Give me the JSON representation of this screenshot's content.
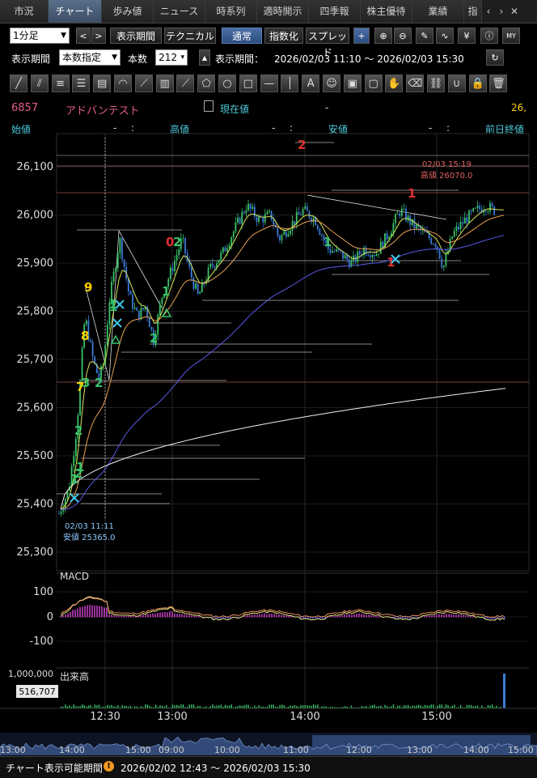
{
  "tabs": [
    {
      "label": "市況",
      "w": 60
    },
    {
      "label": "チャート",
      "w": 66,
      "active": true
    },
    {
      "label": "歩み値",
      "w": 64
    },
    {
      "label": "ニュース",
      "w": 64
    },
    {
      "label": "時系列",
      "w": 64
    },
    {
      "label": "適時開示",
      "w": 64
    },
    {
      "label": "四季報",
      "w": 64
    },
    {
      "label": "株主優待",
      "w": 64
    },
    {
      "label": "業績",
      "w": 64
    },
    {
      "label": "指",
      "w": 22
    }
  ],
  "toolbar": {
    "interval": "1分足",
    "period_button": "表示期間",
    "technical_button": "テクニカル",
    "normal_button": "通常",
    "index_button": "指数化",
    "spread_button": "スプレッド"
  },
  "period_row": {
    "label": "表示期間",
    "mode": "本数指定",
    "count_label": "本数",
    "count_value": "212",
    "range_label": "表示期間：",
    "range_value": "2026/02/03 11:10 〜 2026/02/03 15:30"
  },
  "quote": {
    "code": "6857",
    "name": "アドバンテスト",
    "current_label": "現在値",
    "current_value": "-",
    "current_right": "26,",
    "open_label": "始値",
    "open_value": "-",
    "high_label": "高値",
    "high_value": "-",
    "low_label": "安値",
    "low_value": "-",
    "prev_close_label": "前日終値",
    "sep": ":"
  },
  "chart_data": {
    "type": "candlestick",
    "price_axis": {
      "ticks": [
        "26,100",
        "26,000",
        "25,900",
        "25,800",
        "25,700",
        "25,600",
        "25,500",
        "25,400",
        "25,300"
      ],
      "ylim": [
        25290,
        26160
      ]
    },
    "x_ticks": [
      "12:30",
      "13:00",
      "14:00",
      "15:00"
    ],
    "annotations": {
      "high": {
        "time": "02/03 15:19",
        "label": "高値 26070.0"
      },
      "low": {
        "time": "02/03 11:11",
        "label": "安値 25365.0"
      }
    },
    "td_labels": [
      "9",
      "8",
      "7",
      "3",
      "2",
      "2",
      "1",
      "1",
      "0",
      "2",
      "1",
      "1",
      "2",
      "1",
      "2",
      "1",
      "1",
      "2",
      "1"
    ],
    "macd": {
      "label": "MACD",
      "ticks": [
        "100",
        "0",
        "-100"
      ]
    },
    "volume": {
      "label": "出来高",
      "tick": "1,000,000",
      "current": "516,707"
    }
  },
  "navigator": {
    "ticks": [
      "13:00",
      "14:00",
      "15:00",
      "09:00",
      "10:00",
      "11:00",
      "12:00",
      "13:00",
      "14:00",
      "15:00"
    ]
  },
  "bottom": {
    "label": "チャート表示可能期間",
    "range": "2026/02/02 12:43 〜 2026/02/03 15:30"
  },
  "colors": {
    "up": "#39c46a",
    "down": "#3b7bd8",
    "accent": "#e45b8c",
    "cyan": "#4ec8d8"
  }
}
